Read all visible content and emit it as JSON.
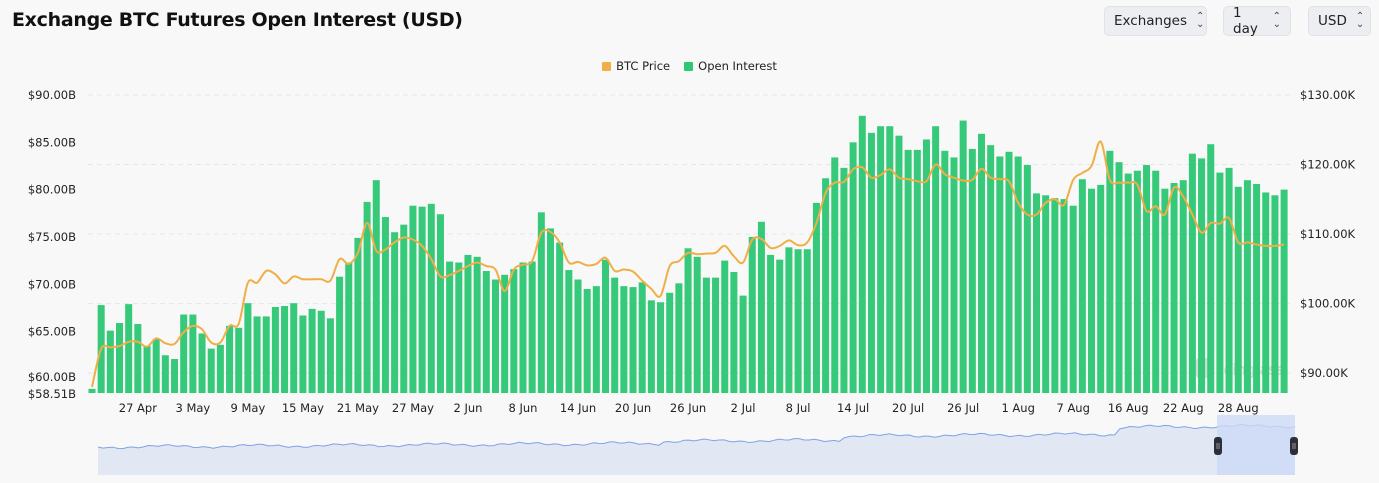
{
  "header": {
    "title": "Exchange BTC Futures Open Interest (USD)"
  },
  "controls": {
    "exchanges": "Exchanges",
    "interval": "1 day",
    "currency": "USD"
  },
  "watermark": "coinglass",
  "colors": {
    "open_interest": "#2ec775",
    "btc_price": "#f0ae47",
    "navigator_line": "#7ea2e8",
    "navigator_fill": "#e1e7f3",
    "navigator_selected": "#cddaf6"
  },
  "chart_data": {
    "type": "bar",
    "title": "Exchange BTC Futures Open Interest (USD)",
    "legend": {
      "position": "top-center",
      "entries": [
        "BTC Price",
        "Open Interest"
      ]
    },
    "grid": true,
    "y_left": {
      "min": 58.51,
      "max": 90,
      "unit": "B USD",
      "tick_labels": [
        "$90.00B",
        "$85.00B",
        "$80.00B",
        "$75.00B",
        "$70.00B",
        "$65.00B",
        "$60.00B",
        "$58.51B"
      ],
      "ticks": [
        90,
        85,
        80,
        75,
        70,
        65,
        60,
        58.51
      ]
    },
    "y_right": {
      "min": 87.14,
      "max": 130,
      "unit": "K USD",
      "tick_labels": [
        "$130.00K",
        "$120.00K",
        "$110.00K",
        "$100.00K",
        "$90.00K"
      ],
      "ticks": [
        130,
        120,
        110,
        100,
        90
      ]
    },
    "x_ticks": [
      {
        "label": "27 Apr",
        "index": 5
      },
      {
        "label": "3 May",
        "index": 11
      },
      {
        "label": "9 May",
        "index": 17
      },
      {
        "label": "15 May",
        "index": 23
      },
      {
        "label": "21 May",
        "index": 29
      },
      {
        "label": "27 May",
        "index": 35
      },
      {
        "label": "2 Jun",
        "index": 41
      },
      {
        "label": "8 Jun",
        "index": 47
      },
      {
        "label": "14 Jun",
        "index": 53
      },
      {
        "label": "20 Jun",
        "index": 59
      },
      {
        "label": "26 Jun",
        "index": 65
      },
      {
        "label": "2 Jul",
        "index": 71
      },
      {
        "label": "8 Jul",
        "index": 77
      },
      {
        "label": "14 Jul",
        "index": 83
      },
      {
        "label": "20 Jul",
        "index": 89
      },
      {
        "label": "26 Jul",
        "index": 95
      },
      {
        "label": "1 Aug",
        "index": 101
      },
      {
        "label": "7 Aug",
        "index": 107
      },
      {
        "label": "16 Aug",
        "index": 113
      },
      {
        "label": "22 Aug",
        "index": 119
      },
      {
        "label": "28 Aug",
        "index": 125
      }
    ],
    "series": [
      {
        "name": "Open Interest",
        "type": "bar",
        "axis": "left",
        "values": [
          58.95,
          67.8,
          65.1,
          65.9,
          67.9,
          65.8,
          63.5,
          64.2,
          62.5,
          62.1,
          66.8,
          66.8,
          64.8,
          63.2,
          63.6,
          65.6,
          65.4,
          68.0,
          66.6,
          66.6,
          67.6,
          67.7,
          68.0,
          66.7,
          67.4,
          67.2,
          66.4,
          70.8,
          72.3,
          74.9,
          78.7,
          81.0,
          77.1,
          75.5,
          76.3,
          78.3,
          78.2,
          78.5,
          77.4,
          72.4,
          72.3,
          73.1,
          72.9,
          71.4,
          70.5,
          71.0,
          71.6,
          72.3,
          72.4,
          77.6,
          75.9,
          74.4,
          71.5,
          70.5,
          69.5,
          69.8,
          72.6,
          70.7,
          69.8,
          69.7,
          70.2,
          68.3,
          68.1,
          69.1,
          70.1,
          73.8,
          72.9,
          70.7,
          70.7,
          72.5,
          71.3,
          68.8,
          75.0,
          76.6,
          73.1,
          72.6,
          73.9,
          73.7,
          73.7,
          78.6,
          81.2,
          83.4,
          82.3,
          85.0,
          87.8,
          86.0,
          86.7,
          86.7,
          85.7,
          84.2,
          84.2,
          85.3,
          86.7,
          84.1,
          83.4,
          87.3,
          84.3,
          85.9,
          84.7,
          83.5,
          84.0,
          83.5,
          82.6,
          79.6,
          79.4,
          79.1,
          79.0,
          78.3,
          81.1,
          80.1,
          80.5,
          84.1,
          82.9,
          81.7,
          82.0,
          82.6,
          82.0,
          80.1,
          80.7,
          81.0,
          83.8,
          83.3,
          84.8,
          81.8,
          82.3,
          80.3,
          81.0,
          80.6,
          79.7,
          79.4,
          80.0
        ]
      },
      {
        "name": "BTC Price",
        "type": "line",
        "axis": "right",
        "values": [
          88.0,
          93.5,
          93.7,
          93.9,
          94.5,
          94.5,
          93.8,
          95.0,
          94.3,
          94.2,
          95.9,
          96.8,
          96.3,
          94.4,
          94.4,
          96.8,
          97.1,
          103.0,
          103.0,
          104.7,
          104.2,
          102.9,
          103.9,
          103.5,
          103.5,
          103.5,
          103.3,
          106.4,
          105.7,
          107.3,
          111.6,
          107.6,
          107.8,
          108.8,
          109.5,
          109.2,
          108.3,
          106.4,
          103.9,
          104.1,
          104.7,
          105.4,
          105.9,
          105.4,
          104.9,
          101.8,
          104.9,
          105.6,
          106.1,
          110.2,
          110.3,
          108.8,
          105.9,
          106.0,
          105.5,
          105.7,
          106.6,
          104.7,
          104.9,
          104.6,
          103.3,
          102.1,
          101.1,
          105.4,
          106.1,
          107.3,
          107.1,
          107.2,
          107.3,
          108.3,
          106.8,
          105.9,
          109.2,
          109.3,
          108.0,
          108.3,
          109.1,
          108.4,
          108.8,
          111.6,
          115.9,
          117.4,
          117.5,
          119.3,
          119.6,
          118.1,
          118.5,
          119.3,
          118.1,
          117.9,
          117.6,
          117.6,
          120.0,
          118.6,
          118.1,
          117.7,
          117.8,
          119.4,
          118.1,
          117.9,
          117.6,
          114.5,
          112.8,
          112.8,
          114.5,
          115.0,
          114.2,
          117.8,
          118.8,
          119.8,
          123.3,
          117.8,
          117.4,
          117.4,
          117.1,
          113.3,
          114.0,
          112.8,
          116.7,
          115.4,
          112.8,
          110.2,
          111.6,
          111.5,
          112.3,
          108.8,
          108.8,
          108.5,
          108.3,
          108.3,
          108.5
        ]
      }
    ]
  }
}
